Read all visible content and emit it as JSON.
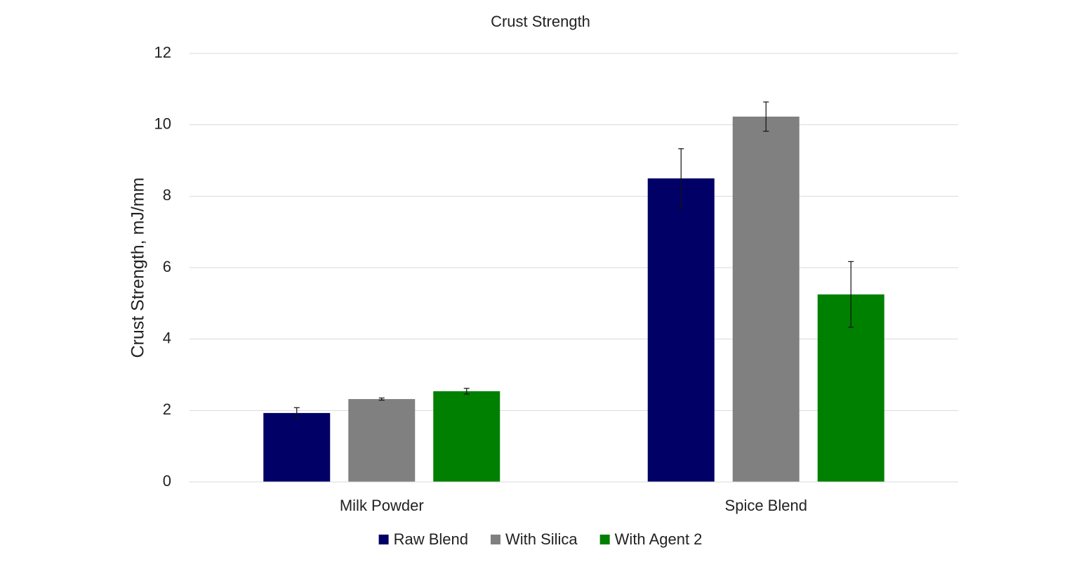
{
  "chart_data": {
    "type": "bar",
    "title": "Crust Strength",
    "y_label": "Crust Strength, mJ/mm",
    "categories": [
      "Milk Powder",
      "Spice Blend"
    ],
    "series": [
      {
        "name": "Raw Blend",
        "color": "#000066",
        "values": [
          1.93,
          8.5
        ],
        "errors": [
          0.15,
          0.83
        ]
      },
      {
        "name": "With Silica",
        "color": "#808080",
        "values": [
          2.32,
          10.23
        ],
        "errors": [
          0.03,
          0.41
        ]
      },
      {
        "name": "With Agent 2",
        "color": "#008000",
        "values": [
          2.54,
          5.25
        ],
        "errors": [
          0.08,
          0.92
        ]
      }
    ],
    "ylim": [
      0,
      12
    ],
    "yticks": [
      0,
      2,
      4,
      6,
      8,
      10,
      12
    ],
    "grid": true,
    "legend": "bottom"
  }
}
